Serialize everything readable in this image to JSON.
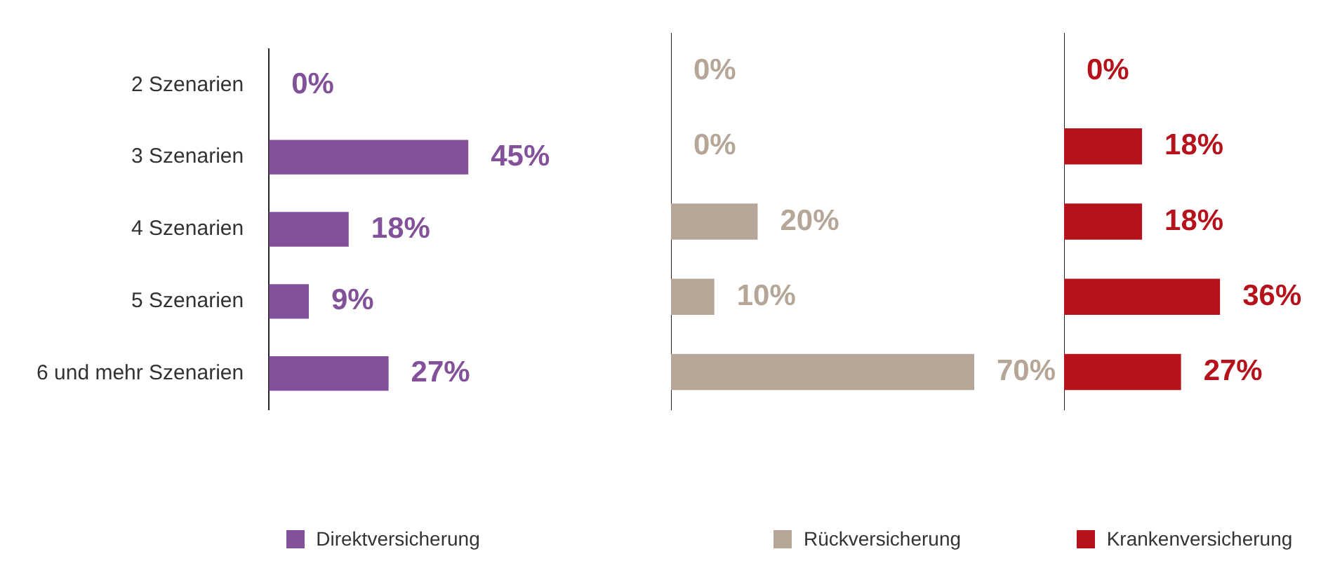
{
  "chart_data": [
    {
      "type": "bar",
      "orientation": "horizontal",
      "categories": [
        "2 Szenarien",
        "3 Szenarien",
        "4 Szenarien",
        "5 Szenarien",
        "6 und mehr Szenarien"
      ],
      "tick_labels": "y",
      "grid": false,
      "legend": "bottom",
      "series": [
        {
          "name": "Direktversicherung",
          "color": "#83519a",
          "values": [
            0,
            45,
            18,
            9,
            27
          ],
          "value_labels": [
            "0%",
            "45%",
            "18%",
            "9%",
            "27%"
          ]
        }
      ]
    },
    {
      "type": "bar",
      "orientation": "horizontal",
      "categories": [
        null,
        null,
        null,
        null,
        null
      ],
      "tick_labels": false,
      "grid": false,
      "legend": "bottom",
      "series": [
        {
          "name": "Rückversicherung",
          "color": "#b5a697",
          "values": [
            0,
            0,
            20,
            10,
            70
          ],
          "value_labels": [
            "0%",
            "0%",
            "20%",
            "10%",
            "70%"
          ]
        }
      ]
    },
    {
      "type": "bar",
      "orientation": "horizontal",
      "categories": [
        null,
        null,
        null,
        null,
        null
      ],
      "tick_labels": false,
      "grid": false,
      "legend": "bottom",
      "series": [
        {
          "name": "Krankenversicherung",
          "color": "#b5121b",
          "values": [
            0,
            18,
            18,
            36,
            27
          ],
          "value_labels": [
            "0%",
            "18%",
            "18%",
            "36%",
            "27%"
          ]
        }
      ]
    }
  ]
}
